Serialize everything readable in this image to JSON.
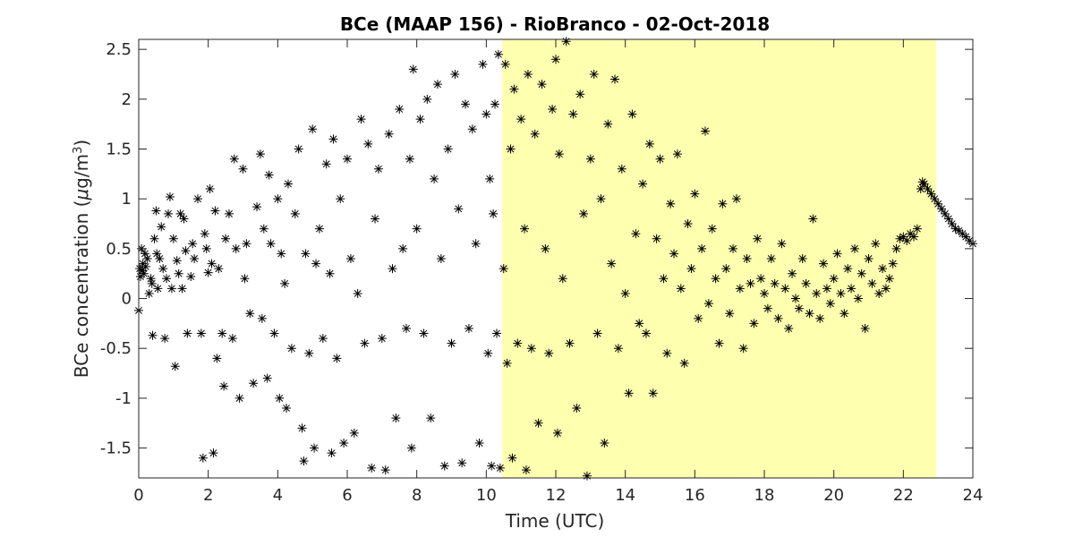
{
  "chart_data": {
    "type": "scatter",
    "title": "BCe (MAAP 156) - RioBranco - 02-Oct-2018",
    "xlabel": "Time (UTC)",
    "ylabel_prefix": "BCe concentration (",
    "ylabel_unit_mu": "μ",
    "ylabel_unit_rest": "g/m",
    "ylabel_unit_exp": "3",
    "ylabel_suffix": ")",
    "xlim": [
      0,
      24
    ],
    "ylim": [
      -1.8,
      2.6
    ],
    "x_ticks": [
      0,
      2,
      4,
      6,
      8,
      10,
      12,
      14,
      16,
      18,
      20,
      22,
      24
    ],
    "x_tick_labels": [
      "0",
      "2",
      "4",
      "6",
      "8",
      "10",
      "12",
      "14",
      "16",
      "18",
      "20",
      "22",
      "24"
    ],
    "y_ticks": [
      -1.5,
      -1,
      -0.5,
      0,
      0.5,
      1,
      1.5,
      2,
      2.5
    ],
    "y_tick_labels": [
      "-1.5",
      "-1",
      "-0.5",
      "0",
      "0.5",
      "1",
      "1.5",
      "2",
      "2.5"
    ],
    "grid": false,
    "highlight_span": {
      "x_start": 10.45,
      "x_end": 22.95,
      "color": "#ffffb0"
    },
    "marker": "asterisk",
    "marker_color": "#000000",
    "series": [
      {
        "points": [
          [
            0.0,
            -0.12
          ],
          [
            0.03,
            0.3
          ],
          [
            0.05,
            0.22
          ],
          [
            0.08,
            0.5
          ],
          [
            0.1,
            0.28
          ],
          [
            0.12,
            0.35
          ],
          [
            0.15,
            0.25
          ],
          [
            0.18,
            0.45
          ],
          [
            0.2,
            0.32
          ],
          [
            0.25,
            0.4
          ],
          [
            0.3,
            0.05
          ],
          [
            0.35,
            0.2
          ],
          [
            0.38,
            0.15
          ],
          [
            0.4,
            -0.37
          ],
          [
            0.45,
            0.6
          ],
          [
            0.5,
            0.88
          ],
          [
            0.52,
            0.45
          ],
          [
            0.55,
            0.1
          ],
          [
            0.6,
            0.4
          ],
          [
            0.65,
            0.72
          ],
          [
            0.7,
            0.3
          ],
          [
            0.75,
            -0.4
          ],
          [
            0.8,
            0.2
          ],
          [
            0.85,
            0.85
          ],
          [
            0.9,
            1.02
          ],
          [
            0.95,
            0.1
          ],
          [
            1.0,
            0.6
          ],
          [
            1.05,
            -0.68
          ],
          [
            1.1,
            0.38
          ],
          [
            1.15,
            0.25
          ],
          [
            1.2,
            0.85
          ],
          [
            1.25,
            0.1
          ],
          [
            1.3,
            0.8
          ],
          [
            1.35,
            0.48
          ],
          [
            1.4,
            -0.35
          ],
          [
            1.5,
            0.22
          ],
          [
            1.55,
            0.55
          ],
          [
            1.6,
            0.4
          ],
          [
            1.7,
            1.0
          ],
          [
            1.8,
            -0.35
          ],
          [
            1.85,
            -1.6
          ],
          [
            1.9,
            0.65
          ],
          [
            1.95,
            0.5
          ],
          [
            2.0,
            0.26
          ],
          [
            2.05,
            1.1
          ],
          [
            2.1,
            0.35
          ],
          [
            2.15,
            -1.55
          ],
          [
            2.2,
            0.88
          ],
          [
            2.25,
            -0.6
          ],
          [
            2.3,
            0.3
          ],
          [
            2.4,
            -0.35
          ],
          [
            2.45,
            -0.88
          ],
          [
            2.5,
            0.6
          ],
          [
            2.6,
            0.85
          ],
          [
            2.7,
            -0.4
          ],
          [
            2.75,
            1.4
          ],
          [
            2.8,
            0.5
          ],
          [
            2.9,
            -1.0
          ],
          [
            3.0,
            1.3
          ],
          [
            3.05,
            0.2
          ],
          [
            3.1,
            0.55
          ],
          [
            3.2,
            -0.15
          ],
          [
            3.3,
            -0.85
          ],
          [
            3.4,
            0.92
          ],
          [
            3.5,
            1.45
          ],
          [
            3.55,
            -0.2
          ],
          [
            3.6,
            0.7
          ],
          [
            3.7,
            -0.8
          ],
          [
            3.75,
            1.24
          ],
          [
            3.8,
            0.55
          ],
          [
            3.9,
            -0.35
          ],
          [
            4.0,
            1.0
          ],
          [
            4.05,
            -1.0
          ],
          [
            4.1,
            0.45
          ],
          [
            4.2,
            0.15
          ],
          [
            4.25,
            -1.1
          ],
          [
            4.3,
            1.15
          ],
          [
            4.4,
            -0.5
          ],
          [
            4.5,
            0.85
          ],
          [
            4.6,
            1.5
          ],
          [
            4.7,
            -1.3
          ],
          [
            4.75,
            -1.63
          ],
          [
            4.8,
            0.45
          ],
          [
            4.9,
            -0.55
          ],
          [
            5.0,
            1.7
          ],
          [
            5.05,
            -1.5
          ],
          [
            5.1,
            0.35
          ],
          [
            5.2,
            0.7
          ],
          [
            5.3,
            -0.4
          ],
          [
            5.4,
            1.35
          ],
          [
            5.5,
            0.25
          ],
          [
            5.55,
            -1.55
          ],
          [
            5.6,
            1.6
          ],
          [
            5.7,
            -0.6
          ],
          [
            5.8,
            1.0
          ],
          [
            5.9,
            -1.45
          ],
          [
            6.0,
            1.4
          ],
          [
            6.1,
            0.4
          ],
          [
            6.2,
            -1.35
          ],
          [
            6.3,
            0.05
          ],
          [
            6.4,
            1.8
          ],
          [
            6.5,
            -0.45
          ],
          [
            6.6,
            1.55
          ],
          [
            6.7,
            -1.7
          ],
          [
            6.8,
            0.8
          ],
          [
            6.9,
            1.3
          ],
          [
            7.0,
            -0.4
          ],
          [
            7.1,
            -1.72
          ],
          [
            7.2,
            1.65
          ],
          [
            7.3,
            0.3
          ],
          [
            7.4,
            -1.2
          ],
          [
            7.5,
            1.9
          ],
          [
            7.6,
            0.5
          ],
          [
            7.7,
            -0.3
          ],
          [
            7.8,
            1.4
          ],
          [
            7.85,
            -1.5
          ],
          [
            7.9,
            2.3
          ],
          [
            8.0,
            0.7
          ],
          [
            8.1,
            1.8
          ],
          [
            8.2,
            -0.35
          ],
          [
            8.3,
            2.0
          ],
          [
            8.4,
            -1.2
          ],
          [
            8.5,
            1.2
          ],
          [
            8.6,
            2.15
          ],
          [
            8.7,
            0.4
          ],
          [
            8.8,
            -1.68
          ],
          [
            8.9,
            1.5
          ],
          [
            9.0,
            -0.45
          ],
          [
            9.1,
            2.25
          ],
          [
            9.2,
            0.9
          ],
          [
            9.3,
            -1.65
          ],
          [
            9.4,
            1.95
          ],
          [
            9.5,
            -0.3
          ],
          [
            9.6,
            1.7
          ],
          [
            9.7,
            0.55
          ],
          [
            9.8,
            -1.45
          ],
          [
            9.9,
            2.35
          ],
          [
            10.0,
            1.85
          ],
          [
            10.05,
            -0.55
          ],
          [
            10.1,
            1.2
          ],
          [
            10.15,
            -1.68
          ],
          [
            10.2,
            0.85
          ],
          [
            10.25,
            1.95
          ],
          [
            10.3,
            -0.35
          ],
          [
            10.35,
            2.45
          ],
          [
            10.4,
            -1.7
          ],
          [
            10.5,
            0.3
          ],
          [
            10.55,
            2.35
          ],
          [
            10.6,
            -0.65
          ],
          [
            10.7,
            1.5
          ],
          [
            10.75,
            -1.6
          ],
          [
            10.8,
            2.1
          ],
          [
            10.9,
            -0.45
          ],
          [
            11.0,
            1.8
          ],
          [
            11.1,
            0.7
          ],
          [
            11.15,
            -1.72
          ],
          [
            11.2,
            2.25
          ],
          [
            11.3,
            -0.5
          ],
          [
            11.4,
            1.65
          ],
          [
            11.5,
            -1.25
          ],
          [
            11.6,
            2.15
          ],
          [
            11.7,
            0.5
          ],
          [
            11.8,
            -0.55
          ],
          [
            11.9,
            1.9
          ],
          [
            12.0,
            2.4
          ],
          [
            12.05,
            -1.35
          ],
          [
            12.1,
            1.45
          ],
          [
            12.2,
            0.2
          ],
          [
            12.3,
            2.58
          ],
          [
            12.4,
            -0.45
          ],
          [
            12.5,
            1.85
          ],
          [
            12.6,
            -1.1
          ],
          [
            12.7,
            2.05
          ],
          [
            12.8,
            0.85
          ],
          [
            12.9,
            -1.78
          ],
          [
            13.0,
            1.4
          ],
          [
            13.1,
            2.25
          ],
          [
            13.2,
            -0.35
          ],
          [
            13.3,
            1.0
          ],
          [
            13.4,
            -1.45
          ],
          [
            13.5,
            1.75
          ],
          [
            13.6,
            0.35
          ],
          [
            13.7,
            2.2
          ],
          [
            13.8,
            -0.5
          ],
          [
            13.9,
            1.3
          ],
          [
            14.0,
            0.05
          ],
          [
            14.1,
            -0.95
          ],
          [
            14.2,
            1.85
          ],
          [
            14.3,
            0.65
          ],
          [
            14.4,
            -0.25
          ],
          [
            14.5,
            1.15
          ],
          [
            14.6,
            -0.35
          ],
          [
            14.7,
            1.55
          ],
          [
            14.8,
            -0.95
          ],
          [
            14.9,
            0.6
          ],
          [
            15.0,
            1.4
          ],
          [
            15.1,
            0.2
          ],
          [
            15.2,
            -0.55
          ],
          [
            15.3,
            0.95
          ],
          [
            15.4,
            0.45
          ],
          [
            15.5,
            1.45
          ],
          [
            15.6,
            0.1
          ],
          [
            15.7,
            -0.65
          ],
          [
            15.8,
            0.75
          ],
          [
            15.9,
            0.3
          ],
          [
            16.0,
            1.05
          ],
          [
            16.1,
            -0.2
          ],
          [
            16.2,
            0.5
          ],
          [
            16.3,
            1.68
          ],
          [
            16.4,
            -0.05
          ],
          [
            16.5,
            0.7
          ],
          [
            16.6,
            0.2
          ],
          [
            16.7,
            -0.45
          ],
          [
            16.8,
            0.95
          ],
          [
            16.9,
            0.3
          ],
          [
            17.0,
            -0.15
          ],
          [
            17.1,
            0.5
          ],
          [
            17.2,
            1.0
          ],
          [
            17.3,
            0.1
          ],
          [
            17.4,
            -0.5
          ],
          [
            17.5,
            0.4
          ],
          [
            17.6,
            0.15
          ],
          [
            17.7,
            -0.25
          ],
          [
            17.8,
            0.6
          ],
          [
            17.9,
            0.2
          ],
          [
            18.0,
            0.05
          ],
          [
            18.1,
            -0.1
          ],
          [
            18.2,
            0.4
          ],
          [
            18.3,
            0.15
          ],
          [
            18.4,
            -0.2
          ],
          [
            18.5,
            0.55
          ],
          [
            18.6,
            0.1
          ],
          [
            18.7,
            -0.3
          ],
          [
            18.8,
            0.25
          ],
          [
            18.9,
            0.0
          ],
          [
            19.0,
            -0.1
          ],
          [
            19.1,
            0.4
          ],
          [
            19.2,
            0.15
          ],
          [
            19.3,
            -0.15
          ],
          [
            19.4,
            0.8
          ],
          [
            19.5,
            0.05
          ],
          [
            19.6,
            -0.2
          ],
          [
            19.7,
            0.35
          ],
          [
            19.8,
            0.1
          ],
          [
            19.9,
            -0.05
          ],
          [
            20.0,
            0.2
          ],
          [
            20.1,
            0.45
          ],
          [
            20.2,
            0.05
          ],
          [
            20.3,
            -0.15
          ],
          [
            20.4,
            0.3
          ],
          [
            20.5,
            0.1
          ],
          [
            20.6,
            0.5
          ],
          [
            20.7,
            0.0
          ],
          [
            20.8,
            0.25
          ],
          [
            20.9,
            -0.3
          ],
          [
            21.0,
            0.4
          ],
          [
            21.1,
            0.15
          ],
          [
            21.2,
            0.55
          ],
          [
            21.3,
            0.05
          ],
          [
            21.4,
            0.3
          ],
          [
            21.5,
            0.1
          ],
          [
            21.6,
            0.2
          ],
          [
            21.7,
            0.35
          ],
          [
            21.8,
            0.5
          ],
          [
            21.9,
            0.6
          ],
          [
            22.0,
            0.62
          ],
          [
            22.1,
            0.58
          ],
          [
            22.2,
            0.65
          ],
          [
            22.3,
            0.62
          ],
          [
            22.4,
            0.7
          ],
          [
            22.5,
            1.1
          ],
          [
            22.55,
            1.17
          ],
          [
            22.6,
            1.15
          ],
          [
            22.7,
            1.1
          ],
          [
            22.8,
            1.05
          ],
          [
            22.9,
            1.0
          ],
          [
            23.0,
            0.95
          ],
          [
            23.1,
            0.9
          ],
          [
            23.2,
            0.85
          ],
          [
            23.3,
            0.8
          ],
          [
            23.4,
            0.75
          ],
          [
            23.5,
            0.7
          ],
          [
            23.6,
            0.68
          ],
          [
            23.7,
            0.65
          ],
          [
            23.8,
            0.62
          ],
          [
            23.9,
            0.58
          ],
          [
            24.0,
            0.55
          ]
        ]
      }
    ]
  }
}
